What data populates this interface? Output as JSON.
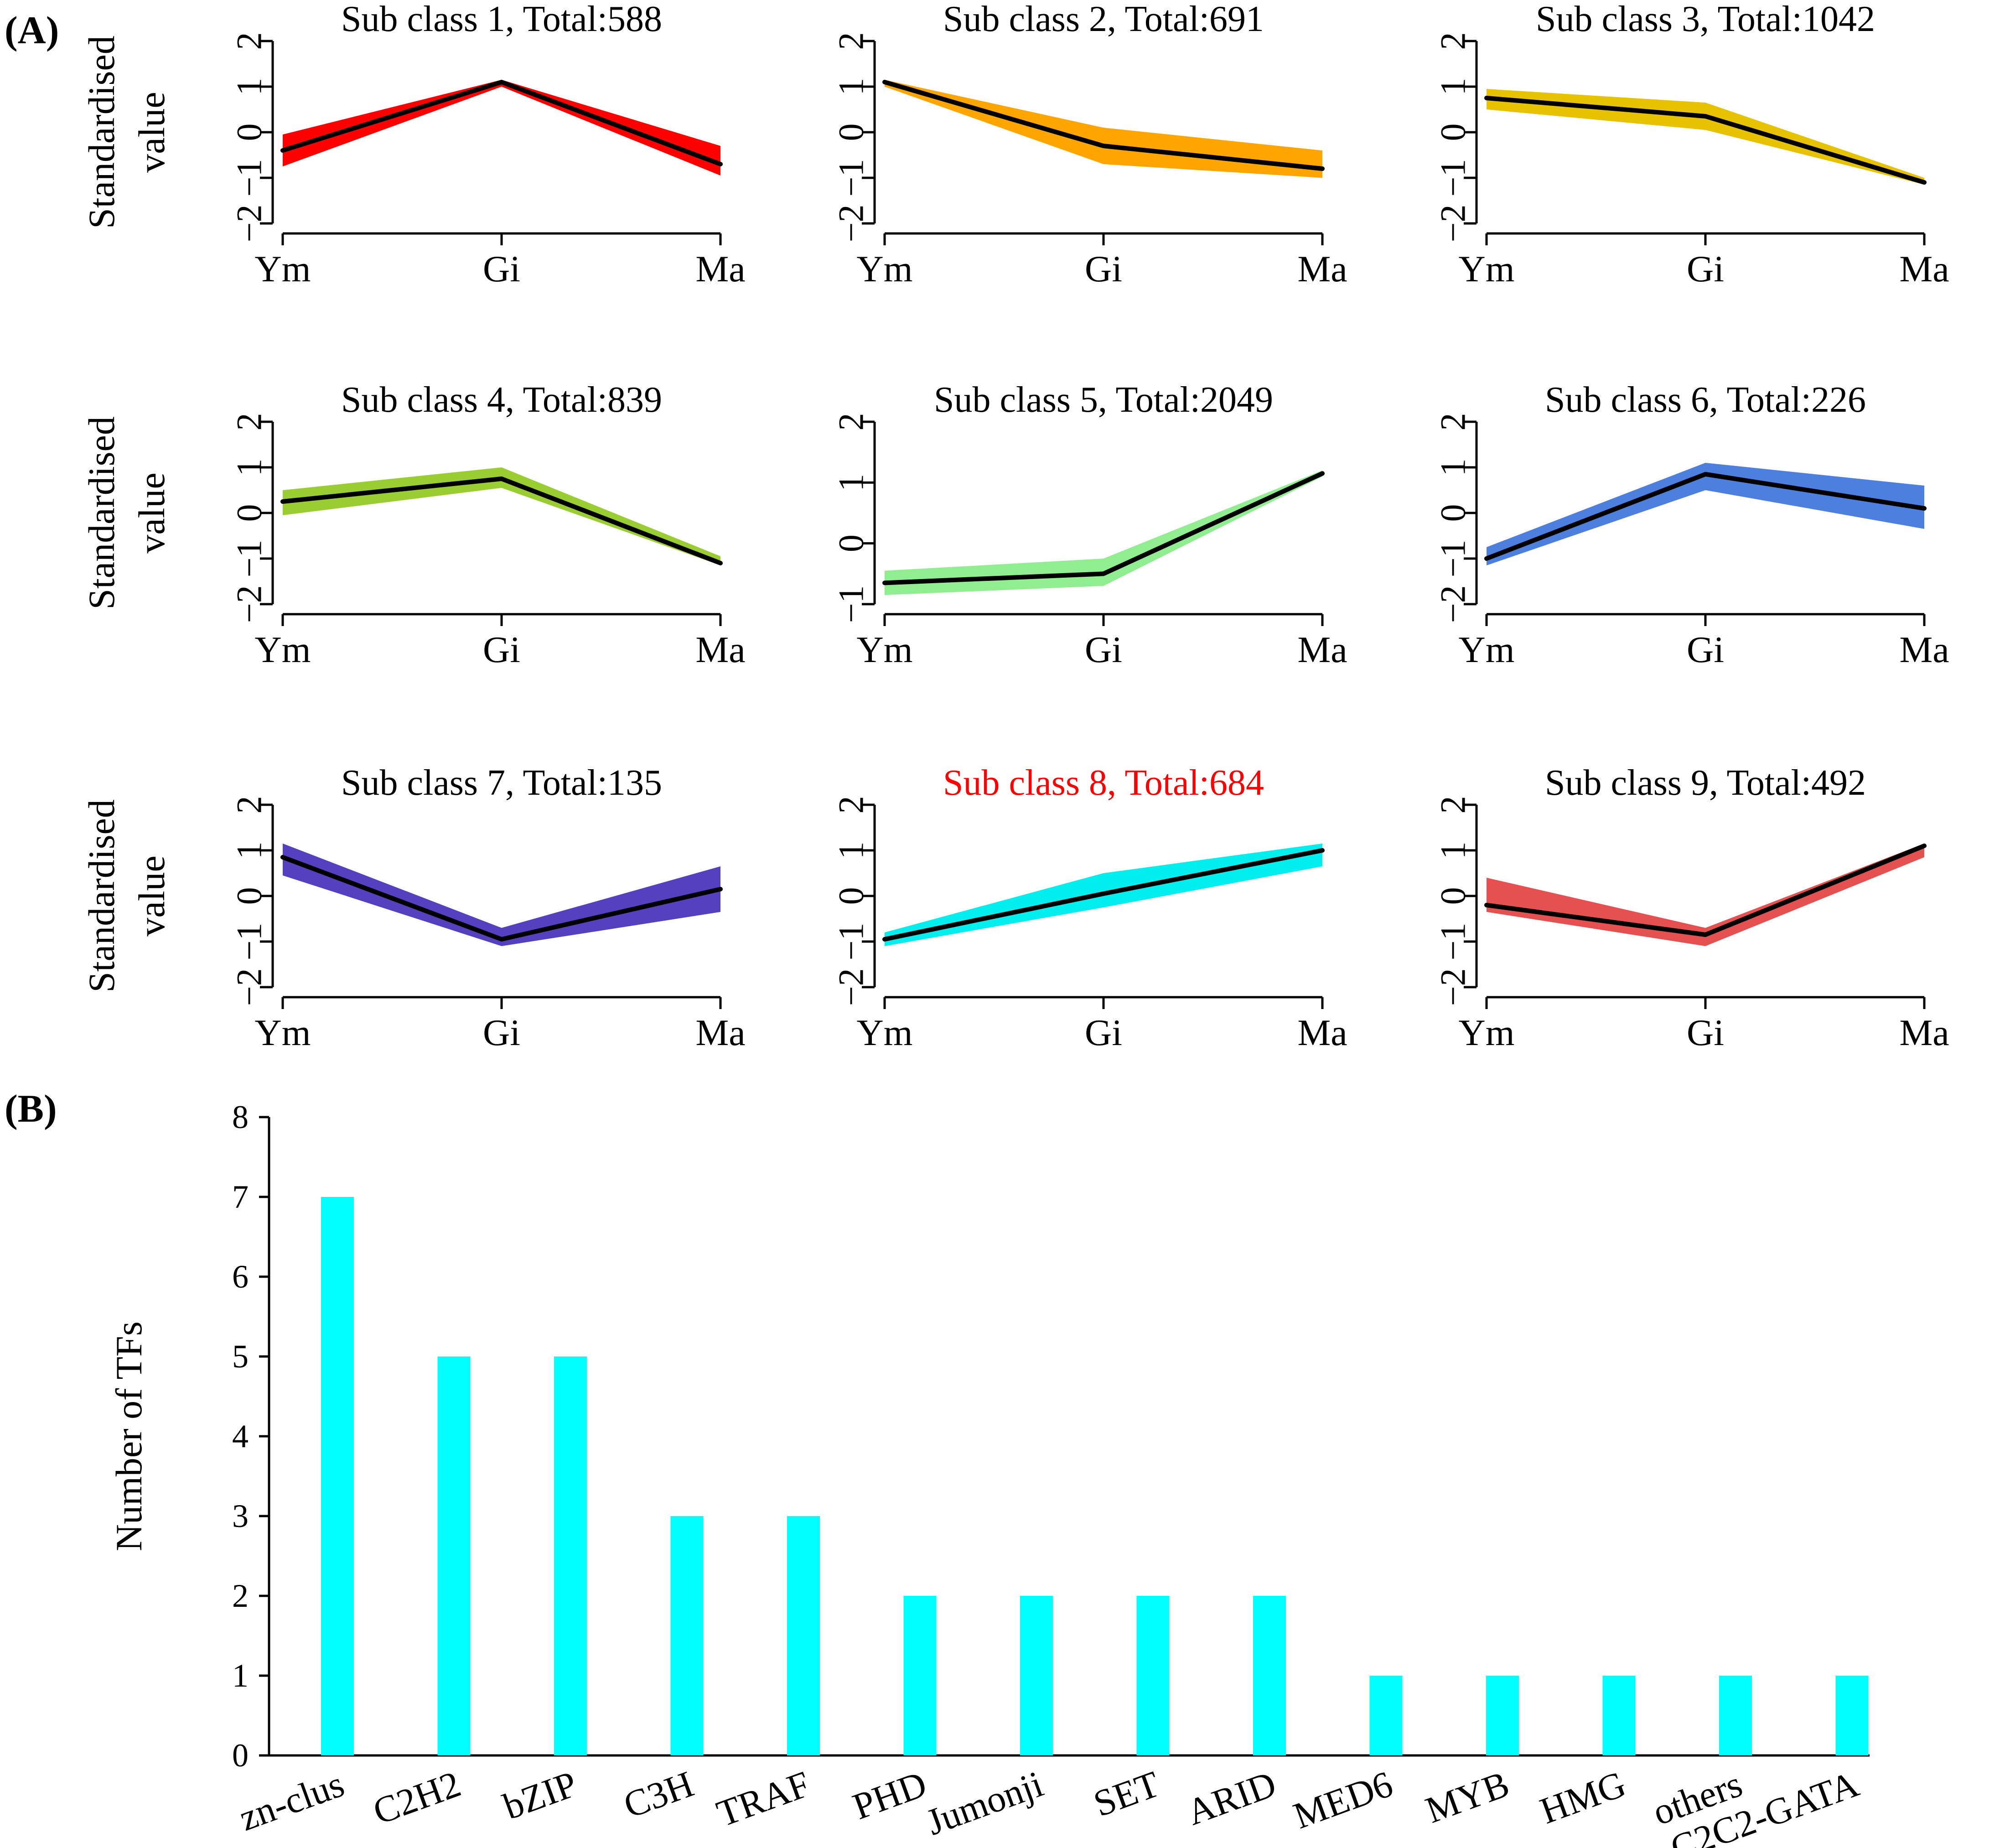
{
  "panel_labels": [
    "(A)",
    "(B)"
  ],
  "chart_data": [
    {
      "type": "area",
      "title": "Sub class 1, Total:588",
      "title_color": "#000000",
      "color": "#ff0000",
      "x": [
        "Ym",
        "Gi",
        "Ma"
      ],
      "ylabel": "Standardised value",
      "yticks": [
        "−2",
        "−1",
        "0",
        "1",
        "2"
      ],
      "ylim": [
        -2,
        2
      ],
      "mean": [
        -0.4,
        1.1,
        -0.7
      ],
      "upper": [
        -0.05,
        1.15,
        -0.3
      ],
      "lower": [
        -0.75,
        1.0,
        -0.95
      ]
    },
    {
      "type": "area",
      "title": "Sub class 2, Total:691",
      "title_color": "#000000",
      "color": "#ffa500",
      "x": [
        "Ym",
        "Gi",
        "Ma"
      ],
      "ylabel": "",
      "yticks": [
        "−2",
        "−1",
        "0",
        "1",
        "2"
      ],
      "ylim": [
        -2,
        2
      ],
      "mean": [
        1.1,
        -0.3,
        -0.8
      ],
      "upper": [
        1.15,
        0.1,
        -0.4
      ],
      "lower": [
        1.0,
        -0.7,
        -1.0
      ]
    },
    {
      "type": "area",
      "title": "Sub class 3, Total:1042",
      "title_color": "#000000",
      "color": "#e6c200",
      "x": [
        "Ym",
        "Gi",
        "Ma"
      ],
      "ylabel": "",
      "yticks": [
        "−2",
        "−1",
        "0",
        "1",
        "2"
      ],
      "ylim": [
        -2,
        2
      ],
      "mean": [
        0.75,
        0.35,
        -1.1
      ],
      "upper": [
        0.95,
        0.65,
        -1.0
      ],
      "lower": [
        0.5,
        0.05,
        -1.15
      ]
    },
    {
      "type": "area",
      "title": "Sub class 4, Total:839",
      "title_color": "#000000",
      "color": "#9acd32",
      "x": [
        "Ym",
        "Gi",
        "Ma"
      ],
      "ylabel": "Standardised value",
      "yticks": [
        "−2",
        "−1",
        "0",
        "1",
        "2"
      ],
      "ylim": [
        -2,
        2
      ],
      "mean": [
        0.25,
        0.75,
        -1.1
      ],
      "upper": [
        0.5,
        1.0,
        -0.95
      ],
      "lower": [
        -0.05,
        0.55,
        -1.15
      ]
    },
    {
      "type": "area",
      "title": "Sub class 5, Total:2049",
      "title_color": "#000000",
      "color": "#90ee90",
      "x": [
        "Ym",
        "Gi",
        "Ma"
      ],
      "ylabel": "",
      "yticks": [
        "−1",
        "0",
        "1",
        "2"
      ],
      "ylim": [
        -1,
        2
      ],
      "mean": [
        -0.65,
        -0.5,
        1.15
      ],
      "upper": [
        -0.45,
        -0.25,
        1.2
      ],
      "lower": [
        -0.85,
        -0.7,
        1.1
      ]
    },
    {
      "type": "area",
      "title": "Sub class 6, Total:226",
      "title_color": "#000000",
      "color": "#4d7fdf",
      "x": [
        "Ym",
        "Gi",
        "Ma"
      ],
      "ylabel": "",
      "yticks": [
        "−2",
        "−1",
        "0",
        "1",
        "2"
      ],
      "ylim": [
        -2,
        2
      ],
      "mean": [
        -1.0,
        0.85,
        0.1
      ],
      "upper": [
        -0.75,
        1.1,
        0.6
      ],
      "lower": [
        -1.15,
        0.5,
        -0.35
      ]
    },
    {
      "type": "area",
      "title": "Sub class 7, Total:135",
      "title_color": "#000000",
      "color": "#5540c0",
      "x": [
        "Ym",
        "Gi",
        "Ma"
      ],
      "ylabel": "Standardised value",
      "yticks": [
        "−2",
        "−1",
        "0",
        "1",
        "2"
      ],
      "ylim": [
        -2,
        2
      ],
      "mean": [
        0.85,
        -0.95,
        0.15
      ],
      "upper": [
        1.15,
        -0.7,
        0.65
      ],
      "lower": [
        0.45,
        -1.1,
        -0.35
      ]
    },
    {
      "type": "area",
      "title": "Sub class 8, Total:684",
      "title_color": "#ff0000",
      "color": "#00eeee",
      "x": [
        "Ym",
        "Gi",
        "Ma"
      ],
      "ylabel": "",
      "yticks": [
        "−2",
        "−1",
        "0",
        "1",
        "2"
      ],
      "ylim": [
        -2,
        2
      ],
      "mean": [
        -0.95,
        0.05,
        1.0
      ],
      "upper": [
        -0.8,
        0.5,
        1.15
      ],
      "lower": [
        -1.1,
        -0.25,
        0.65
      ]
    },
    {
      "type": "area",
      "title": "Sub class 9, Total:492",
      "title_color": "#000000",
      "color": "#e55050",
      "x": [
        "Ym",
        "Gi",
        "Ma"
      ],
      "ylabel": "",
      "yticks": [
        "−2",
        "−1",
        "0",
        "1",
        "2"
      ],
      "ylim": [
        -2,
        2
      ],
      "mean": [
        -0.2,
        -0.85,
        1.1
      ],
      "upper": [
        0.4,
        -0.7,
        1.15
      ],
      "lower": [
        -0.35,
        -1.1,
        0.85
      ]
    },
    {
      "type": "bar",
      "title": "",
      "color": "#00ffff",
      "ylabel": "Number of TFs",
      "xlabel": "",
      "categories": [
        "zn-clus",
        "C2H2",
        "bZIP",
        "C3H",
        "TRAF",
        "PHD",
        "Jumonji",
        "SET",
        "ARID",
        "MED6",
        "MYB",
        "HMG",
        "others",
        "C2C2-GATA"
      ],
      "values": [
        7,
        5,
        5,
        3,
        3,
        2,
        2,
        2,
        2,
        1,
        1,
        1,
        1,
        1
      ],
      "ylim": [
        0,
        8
      ],
      "yticks": [
        "0",
        "1",
        "2",
        "3",
        "4",
        "5",
        "6",
        "7",
        "8"
      ]
    }
  ]
}
